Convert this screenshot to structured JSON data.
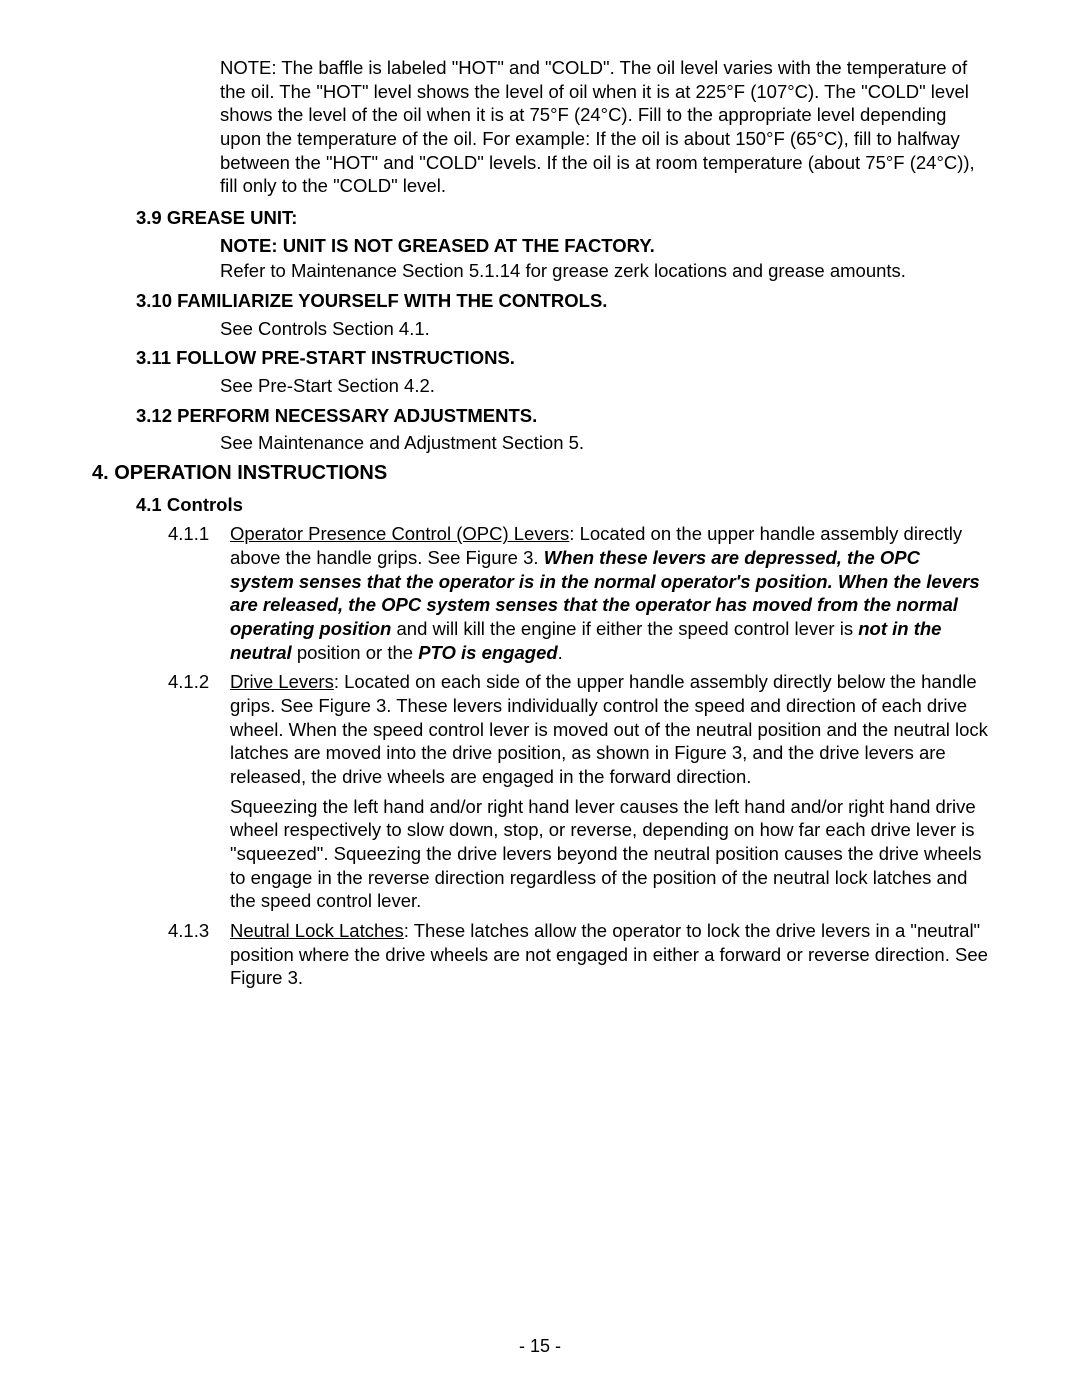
{
  "note_block": "NOTE:  The baffle is labeled \"HOT\" and \"COLD\".  The oil level varies with the temperature of the oil.  The \"HOT\" level shows the level of oil when it is at 225°F (107°C).  The \"COLD\" level shows the level of the oil when it is at 75°F (24°C).  Fill to the appropriate level depending upon the temperature of the oil.  For example:  If the oil is about 150°F (65°C), fill to halfway between the \"HOT\" and \"COLD\" levels.  If the oil is at room temperature (about 75°F (24°C)), fill only to the \"COLD\" level.",
  "sec_3_9": {
    "heading": "3.9  GREASE UNIT:",
    "note": "NOTE: UNIT IS NOT GREASED AT THE FACTORY.",
    "text": "Refer to Maintenance Section 5.1.14 for grease zerk locations and grease amounts."
  },
  "sec_3_10": {
    "heading": "3.10 FAMILIARIZE YOURSELF WITH THE CONTROLS.",
    "text": "See Controls Section 4.1."
  },
  "sec_3_11": {
    "heading_bold": "3.11 FOLLOW PRE-START INSTRUCTIONS",
    "heading_tail": ".",
    "text": "See Pre-Start Section 4.2."
  },
  "sec_3_12": {
    "heading": "3.12 PERFORM NECESSARY ADJUSTMENTS.",
    "text": "See Maintenance and Adjustment Section 5."
  },
  "sec_4": {
    "heading": "4. OPERATION INSTRUCTIONS"
  },
  "sec_4_1": {
    "heading": "4.1  Controls"
  },
  "sub_4_1_1": {
    "num": "4.1.1",
    "title": "Operator Presence Control (OPC) Levers",
    "lead": ": Located on the upper handle assembly directly above the handle grips.  See Figure 3.  ",
    "bold1": "When these levers are depressed, the OPC system senses that the operator is in the normal operator's position.  When the levers are released, the OPC system senses that the operator has moved from the normal operating position",
    "mid1": " and will kill the engine if either the speed control lever is ",
    "bold2": "not in the neutral",
    "mid2": " position or the ",
    "bold3": "PTO is engaged",
    "tail": "."
  },
  "sub_4_1_2": {
    "num": "4.1.2",
    "title": "Drive Levers",
    "body": ": Located on each side of the upper handle assembly directly below the handle grips.  See Figure 3.  These levers individually control the speed and direction of each drive wheel.  When the speed control lever is moved out of the neutral position and the neutral lock latches are moved into the drive position, as shown in Figure 3, and the drive levers are released, the drive wheels are engaged in the forward direction.",
    "para2": "Squeezing the left hand and/or right hand lever causes the left hand and/or right hand drive wheel respectively to slow down, stop, or reverse, depending on how far each drive lever is \"squeezed\".  Squeezing the drive levers beyond the neutral position causes the drive wheels to engage in the reverse direction regardless of the position of the neutral lock latches and the speed control lever."
  },
  "sub_4_1_3": {
    "num": "4.1.3",
    "title": "Neutral Lock Latches",
    "body": ": These latches allow the operator to lock the drive levers in a \"neutral\" position where the drive wheels are not engaged in either a forward or reverse direction.  See Figure 3."
  },
  "page_number": "- 15 -"
}
